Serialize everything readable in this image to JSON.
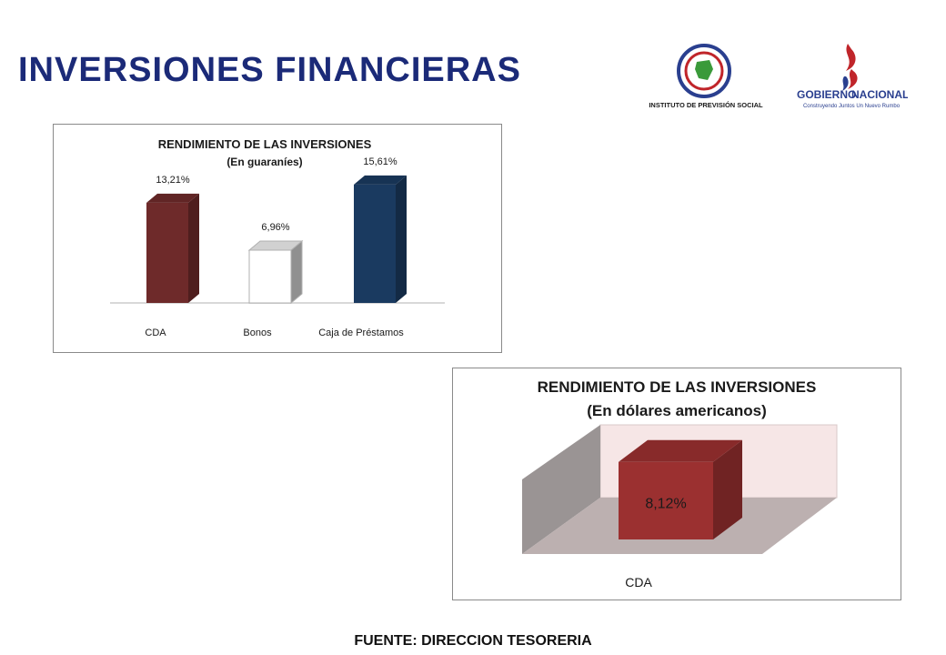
{
  "page": {
    "title": "INVERSIONES FINANCIERAS",
    "source": "FUENTE: DIRECCION TESORERIA"
  },
  "logos": {
    "ips": {
      "text": "INSTITUTO DE PREVISIÓN SOCIAL",
      "icon": "ips-seal-icon"
    },
    "gobierno": {
      "text_a": "GOBIERNO",
      "text_b": "NACIONAL",
      "tagline": "Construyendo Juntos Un Nuevo Rumbo",
      "icon": "flame-icon"
    }
  },
  "chart_data": [
    {
      "type": "bar",
      "title": "RENDIMIENTO DE LAS INVERSIONES",
      "subtitle": "(En guaraníes)",
      "categories": [
        "CDA",
        "Bonos",
        "Caja de Préstamos"
      ],
      "values": [
        13.21,
        6.96,
        15.61
      ],
      "value_labels": [
        "13,21%",
        "6,96%",
        "15,61%"
      ],
      "colors": [
        "#6e2a2a",
        "#ffffff",
        "#1a3a60"
      ],
      "ylim": [
        0,
        18
      ],
      "grid": false,
      "legend": "none"
    },
    {
      "type": "bar",
      "title": "RENDIMIENTO DE LAS INVERSIONES",
      "subtitle": "(En dólares americanos)",
      "categories": [
        "CDA"
      ],
      "values": [
        8.12
      ],
      "value_labels": [
        "8,12%"
      ],
      "colors": [
        "#9b3030"
      ],
      "ylim": [
        0,
        10
      ],
      "grid": false,
      "legend": "none"
    }
  ]
}
